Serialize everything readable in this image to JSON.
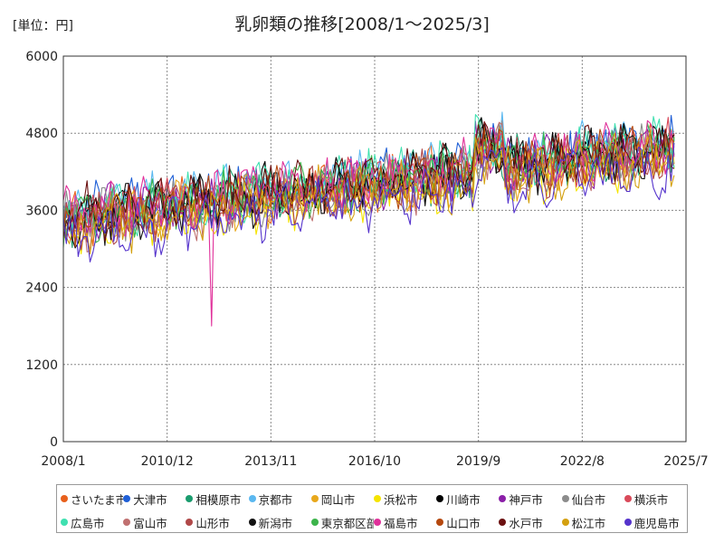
{
  "header": {
    "unit_label": "[単位：円]",
    "title": "乳卵類の推移[2008/1～2025/3]"
  },
  "chart_data": {
    "type": "line",
    "title": "乳卵類の推移[2008/1～2025/3]",
    "unit": "[単位：円]",
    "xlabel": "",
    "ylabel": "",
    "x_start": "2008/1",
    "x_end": "2025/3",
    "x_ticks": [
      "2008/1",
      "2010/12",
      "2013/11",
      "2016/10",
      "2019/9",
      "2022/8",
      "2025/7"
    ],
    "y_ticks": [
      0,
      1200,
      2400,
      3600,
      4800,
      6000
    ],
    "ylim": [
      0,
      6000
    ],
    "grid": true,
    "legend_position": "bottom",
    "series": [
      {
        "name": "さいたま市",
        "color": "#e8601c"
      },
      {
        "name": "大津市",
        "color": "#1f5fd6"
      },
      {
        "name": "相模原市",
        "color": "#1a9c6e"
      },
      {
        "name": "京都市",
        "color": "#5bb8f0"
      },
      {
        "name": "岡山市",
        "color": "#e8a81c"
      },
      {
        "name": "浜松市",
        "color": "#f5e400"
      },
      {
        "name": "川崎市",
        "color": "#000000"
      },
      {
        "name": "神戸市",
        "color": "#8b1fa8"
      },
      {
        "name": "仙台市",
        "color": "#8c8c8c"
      },
      {
        "name": "横浜市",
        "color": "#d94a5a"
      },
      {
        "name": "広島市",
        "color": "#3fe0b0"
      },
      {
        "name": "富山市",
        "color": "#c07070"
      },
      {
        "name": "山形市",
        "color": "#b04848"
      },
      {
        "name": "新潟市",
        "color": "#111111"
      },
      {
        "name": "東京都区部",
        "color": "#3cb44b"
      },
      {
        "name": "福島市",
        "color": "#e0309a"
      },
      {
        "name": "山口市",
        "color": "#b5480e"
      },
      {
        "name": "水戸市",
        "color": "#6b1010"
      },
      {
        "name": "松江市",
        "color": "#d4a010"
      },
      {
        "name": "鹿児島市",
        "color": "#5533cc"
      }
    ]
  }
}
